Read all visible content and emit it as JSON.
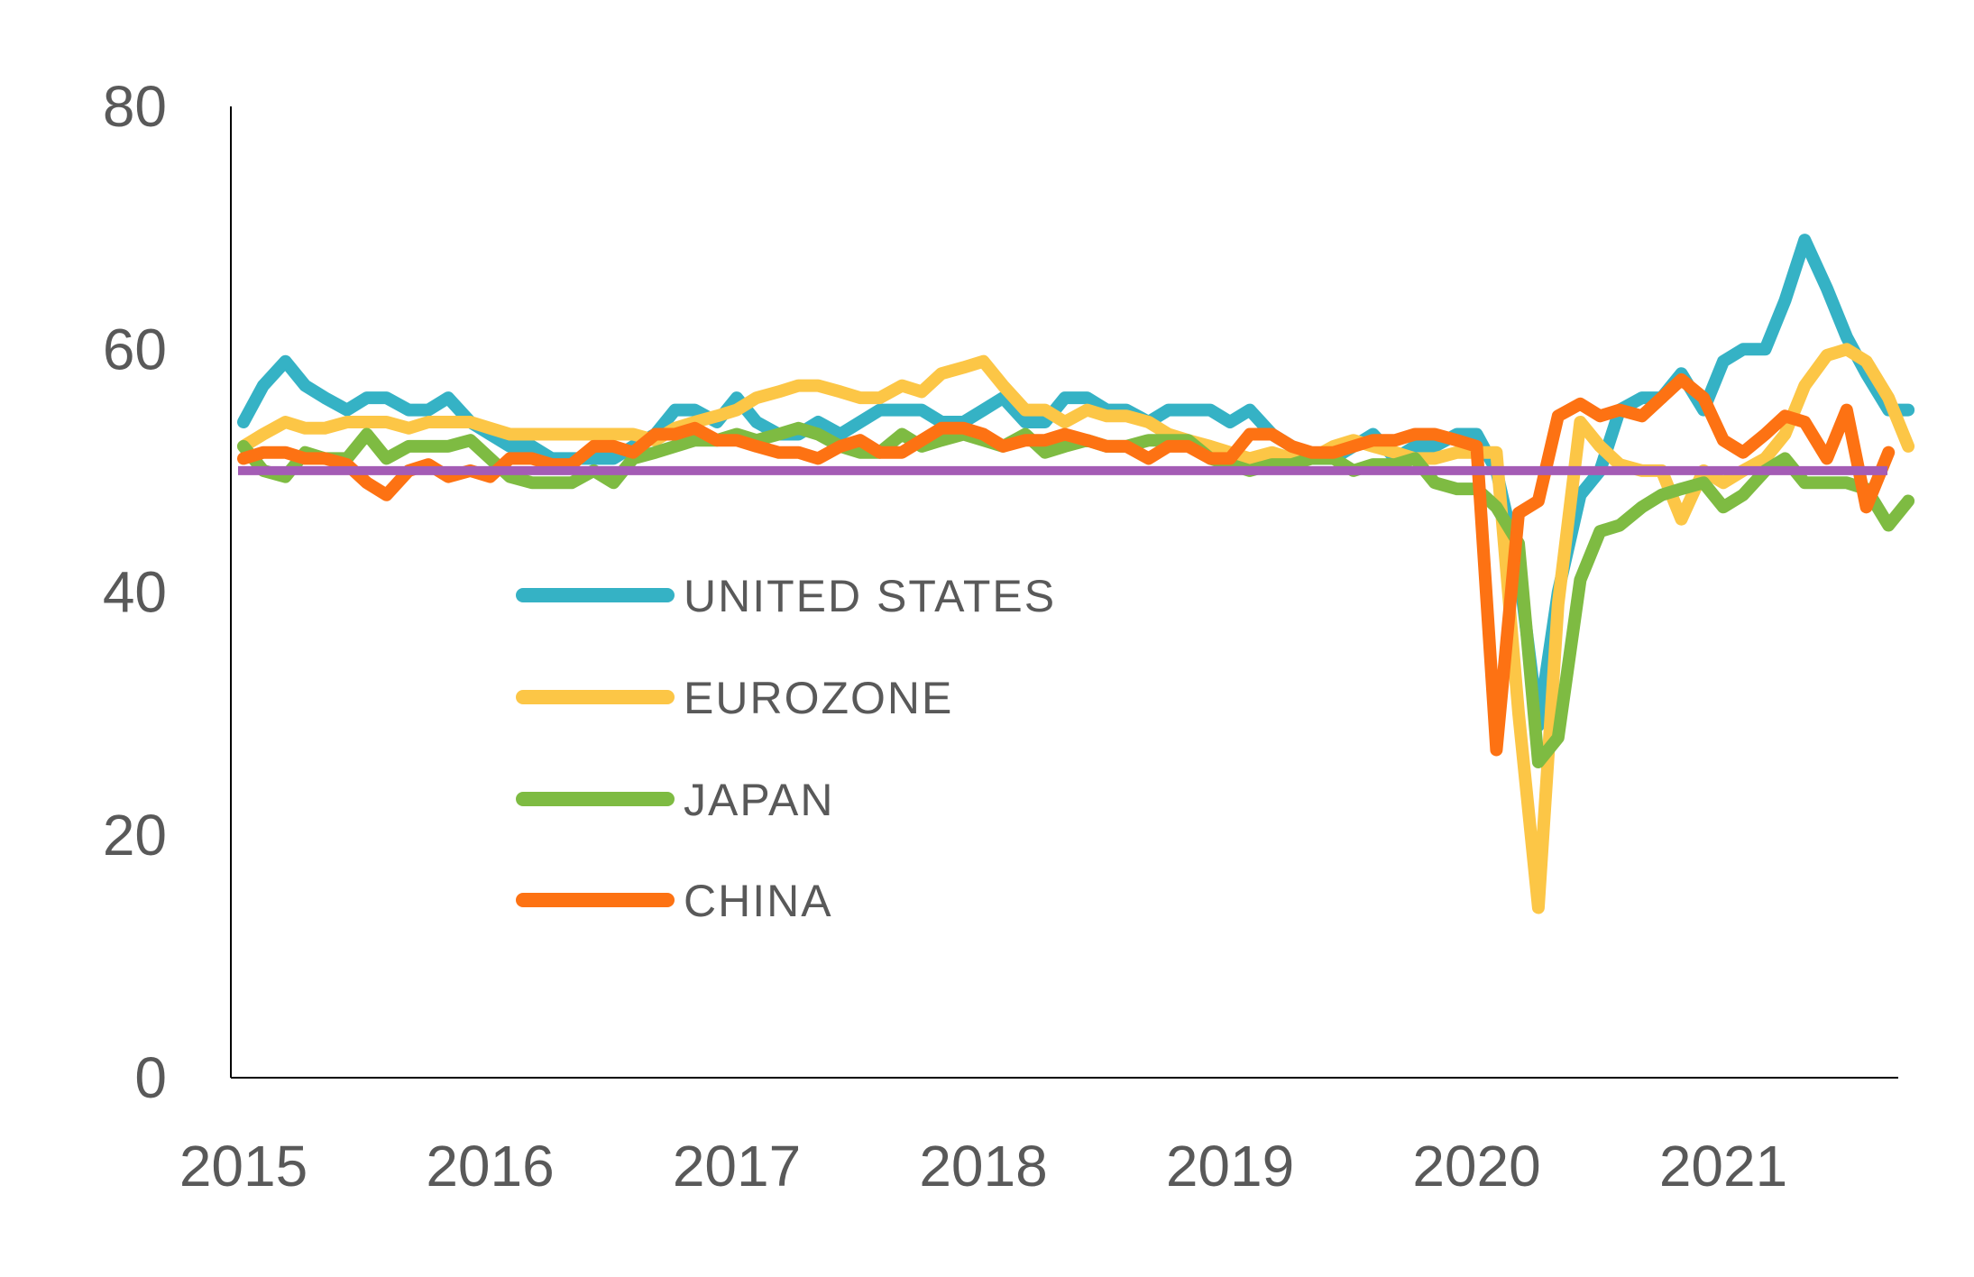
{
  "chart_data": {
    "type": "line",
    "title": "",
    "xlabel": "",
    "ylabel": "",
    "ylim": [
      0,
      80
    ],
    "xlim": [
      2015,
      2021.75
    ],
    "y_ticks": [
      0,
      20,
      40,
      60,
      80
    ],
    "y_tick_labels": [
      "0",
      "20",
      "40",
      "60",
      "80"
    ],
    "x_ticks": [
      2015,
      2016,
      2017,
      2018,
      2019,
      2020,
      2021
    ],
    "x_tick_labels": [
      "2015",
      "2016",
      "2017",
      "2018",
      "2019",
      "2020",
      "2021"
    ],
    "grid": false,
    "legend_position": "center-left",
    "reference_line": {
      "value": 50,
      "color": "#A45CB5"
    },
    "series": [
      {
        "name": "UNITED STATES",
        "color": "#35B2C5",
        "x": [
          2015.0,
          2015.08,
          2015.17,
          2015.25,
          2015.33,
          2015.42,
          2015.5,
          2015.58,
          2015.67,
          2015.75,
          2015.83,
          2015.92,
          2016.0,
          2016.08,
          2016.17,
          2016.25,
          2016.33,
          2016.42,
          2016.5,
          2016.58,
          2016.67,
          2016.75,
          2016.83,
          2016.92,
          2017.0,
          2017.08,
          2017.17,
          2017.25,
          2017.33,
          2017.42,
          2017.5,
          2017.58,
          2017.67,
          2017.75,
          2017.83,
          2017.92,
          2018.0,
          2018.08,
          2018.17,
          2018.25,
          2018.33,
          2018.42,
          2018.5,
          2018.58,
          2018.67,
          2018.75,
          2018.83,
          2018.92,
          2019.0,
          2019.08,
          2019.17,
          2019.25,
          2019.33,
          2019.42,
          2019.5,
          2019.58,
          2019.67,
          2019.75,
          2019.83,
          2019.92,
          2020.0,
          2020.08,
          2020.17,
          2020.25,
          2020.33,
          2020.42,
          2020.5,
          2020.58,
          2020.67,
          2020.75,
          2020.83,
          2020.92,
          2021.0,
          2021.08,
          2021.17,
          2021.25,
          2021.33,
          2021.42,
          2021.5,
          2021.58,
          2021.67,
          2021.75
        ],
        "values": [
          54,
          57,
          59,
          57,
          56,
          55,
          56,
          56,
          55,
          55,
          56,
          54,
          53,
          52,
          52,
          51,
          51,
          51,
          51,
          52,
          53,
          55,
          55,
          54,
          56,
          54,
          53,
          53,
          54,
          53,
          54,
          55,
          55,
          55,
          54,
          54,
          55,
          56,
          54,
          54,
          56,
          56,
          55,
          55,
          54,
          55,
          55,
          55,
          54,
          55,
          53,
          52,
          51,
          51,
          52,
          53,
          51,
          52,
          52,
          53,
          53,
          50,
          42,
          29,
          40,
          48,
          50,
          55,
          56,
          56,
          58,
          55,
          59,
          60,
          60,
          64,
          69,
          65,
          61,
          58,
          55,
          55
        ]
      },
      {
        "name": "EUROZONE",
        "color": "#FCC646",
        "x": [
          2015.0,
          2015.08,
          2015.17,
          2015.25,
          2015.33,
          2015.42,
          2015.5,
          2015.58,
          2015.67,
          2015.75,
          2015.83,
          2015.92,
          2016.0,
          2016.08,
          2016.17,
          2016.25,
          2016.33,
          2016.42,
          2016.5,
          2016.58,
          2016.67,
          2016.75,
          2016.83,
          2016.92,
          2017.0,
          2017.08,
          2017.17,
          2017.25,
          2017.33,
          2017.42,
          2017.5,
          2017.58,
          2017.67,
          2017.75,
          2017.83,
          2017.92,
          2018.0,
          2018.08,
          2018.17,
          2018.25,
          2018.33,
          2018.42,
          2018.5,
          2018.58,
          2018.67,
          2018.75,
          2018.83,
          2018.92,
          2019.0,
          2019.08,
          2019.17,
          2019.25,
          2019.33,
          2019.42,
          2019.5,
          2019.58,
          2019.67,
          2019.75,
          2019.83,
          2019.92,
          2020.0,
          2020.08,
          2020.17,
          2020.25,
          2020.33,
          2020.42,
          2020.5,
          2020.58,
          2020.67,
          2020.75,
          2020.83,
          2020.92,
          2021.0,
          2021.08,
          2021.17,
          2021.25,
          2021.33,
          2021.42,
          2021.5,
          2021.58,
          2021.67,
          2021.75
        ],
        "values": [
          52,
          53,
          54,
          53.5,
          53.5,
          54,
          54,
          54,
          53.5,
          54,
          54,
          54,
          53.5,
          53,
          53,
          53,
          53,
          53,
          53,
          53,
          52.5,
          53.5,
          54,
          54.5,
          55,
          56,
          56.5,
          57,
          57,
          56.5,
          56,
          56,
          57,
          56.5,
          58,
          58.5,
          59,
          57,
          55,
          55,
          54,
          55,
          54.5,
          54.5,
          54,
          53,
          52.5,
          52,
          51.5,
          51,
          51.5,
          51,
          51,
          52,
          52.5,
          52,
          51.5,
          51,
          51,
          51.5,
          51.5,
          51.5,
          30,
          14,
          39,
          54,
          52,
          50.5,
          50,
          50,
          46,
          50,
          49,
          50,
          51,
          53,
          57,
          59.5,
          60,
          59,
          56,
          52
        ]
      },
      {
        "name": "JAPAN",
        "color": "#7EBB42",
        "x": [
          2015.0,
          2015.08,
          2015.17,
          2015.25,
          2015.33,
          2015.42,
          2015.5,
          2015.58,
          2015.67,
          2015.75,
          2015.83,
          2015.92,
          2016.0,
          2016.08,
          2016.17,
          2016.25,
          2016.33,
          2016.42,
          2016.5,
          2016.58,
          2016.67,
          2016.75,
          2016.83,
          2016.92,
          2017.0,
          2017.08,
          2017.17,
          2017.25,
          2017.33,
          2017.42,
          2017.5,
          2017.58,
          2017.67,
          2017.75,
          2017.83,
          2017.92,
          2018.0,
          2018.08,
          2018.17,
          2018.25,
          2018.33,
          2018.42,
          2018.5,
          2018.58,
          2018.67,
          2018.75,
          2018.83,
          2018.92,
          2019.0,
          2019.08,
          2019.17,
          2019.25,
          2019.33,
          2019.42,
          2019.5,
          2019.58,
          2019.67,
          2019.75,
          2019.83,
          2019.92,
          2020.0,
          2020.08,
          2020.17,
          2020.25,
          2020.33,
          2020.42,
          2020.5,
          2020.58,
          2020.67,
          2020.75,
          2020.83,
          2020.92,
          2021.0,
          2021.08,
          2021.17,
          2021.25,
          2021.33,
          2021.42,
          2021.5,
          2021.58,
          2021.67,
          2021.75
        ],
        "values": [
          52,
          50,
          49.5,
          51.5,
          51,
          51,
          53,
          51,
          52,
          52,
          52,
          52.5,
          51,
          49.5,
          49,
          49,
          49,
          50,
          49,
          51,
          51.5,
          52,
          52.5,
          52.5,
          53,
          52.5,
          53,
          53.5,
          53,
          52,
          51.5,
          51.5,
          53,
          52,
          52.5,
          53,
          52.5,
          52,
          53,
          51.5,
          52,
          52.5,
          52,
          52,
          52.5,
          52.5,
          52.5,
          51,
          50.5,
          50,
          50.5,
          50.5,
          51,
          51,
          50,
          50.5,
          50.5,
          51,
          49,
          48.5,
          48.5,
          47,
          44,
          26,
          28,
          41,
          45,
          45.5,
          47,
          48,
          48.5,
          49,
          47,
          48,
          50,
          51,
          49,
          49,
          49,
          48.5,
          45.5,
          47.5
        ]
      },
      {
        "name": "CHINA",
        "color": "#FD7213",
        "x": [
          2015.0,
          2015.08,
          2015.17,
          2015.25,
          2015.33,
          2015.42,
          2015.5,
          2015.58,
          2015.67,
          2015.75,
          2015.83,
          2015.92,
          2016.0,
          2016.08,
          2016.17,
          2016.25,
          2016.33,
          2016.42,
          2016.5,
          2016.58,
          2016.67,
          2016.75,
          2016.83,
          2016.92,
          2017.0,
          2017.08,
          2017.17,
          2017.25,
          2017.33,
          2017.42,
          2017.5,
          2017.58,
          2017.67,
          2017.75,
          2017.83,
          2017.92,
          2018.0,
          2018.08,
          2018.17,
          2018.25,
          2018.33,
          2018.42,
          2018.5,
          2018.58,
          2018.67,
          2018.75,
          2018.83,
          2018.92,
          2019.0,
          2019.08,
          2019.17,
          2019.25,
          2019.33,
          2019.42,
          2019.5,
          2019.58,
          2019.67,
          2019.75,
          2019.83,
          2019.92,
          2020.0,
          2020.08,
          2020.17,
          2020.25,
          2020.33,
          2020.42,
          2020.5,
          2020.58,
          2020.67,
          2020.75,
          2020.83,
          2020.92,
          2021.0,
          2021.08,
          2021.17,
          2021.25,
          2021.33,
          2021.42,
          2021.5,
          2021.58,
          2021.67,
          2021.75
        ],
        "values": [
          51,
          51.5,
          51.5,
          51,
          51,
          50.5,
          49,
          48,
          50,
          50.5,
          49.5,
          50,
          49.5,
          51,
          51,
          50.5,
          50.5,
          52,
          52,
          51.5,
          53,
          53,
          53.5,
          52.5,
          52.5,
          52,
          51.5,
          51.5,
          51,
          52,
          52.5,
          51.5,
          51.5,
          52.5,
          53.5,
          53.5,
          53,
          52,
          52.5,
          52.5,
          53,
          52.5,
          52,
          52,
          51,
          52,
          52,
          51,
          51,
          53,
          53,
          52,
          51.5,
          51.5,
          52,
          52.5,
          52.5,
          53,
          53,
          52.5,
          52,
          27,
          46.5,
          47.5,
          54.5,
          55.5,
          54.5,
          55,
          54.5,
          56,
          57.5,
          56,
          52.5,
          51.5,
          53,
          54.5,
          54,
          51,
          55,
          47,
          51.5,
          null
        ]
      }
    ]
  }
}
